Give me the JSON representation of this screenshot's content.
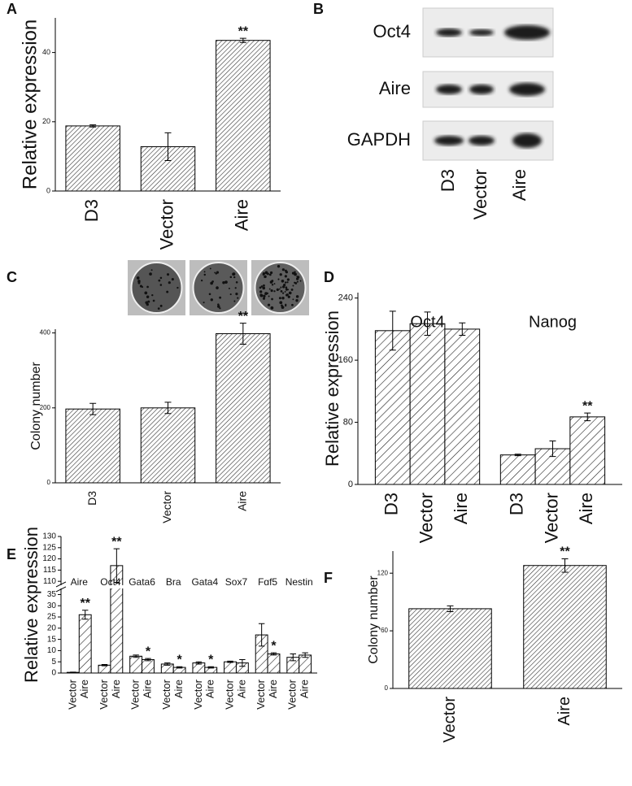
{
  "chart_data": [
    {
      "type": "bar",
      "panel": "A",
      "ylabel": "Relative expression",
      "categories": [
        "D3",
        "Vector",
        "Aire"
      ],
      "values": [
        18.8,
        12.8,
        43.5
      ],
      "errors": [
        0.3,
        4,
        0.6
      ],
      "annotations": [
        null,
        null,
        "**"
      ],
      "ylim": [
        0,
        50
      ],
      "yticks": [
        0,
        20,
        40
      ]
    },
    {
      "type": "blot",
      "panel": "B",
      "rows": [
        "Oct4",
        "Aire",
        "GAPDH"
      ],
      "lanes": [
        "D3",
        "Vector",
        "Aire"
      ]
    },
    {
      "type": "bar",
      "panel": "C",
      "ylabel": "Colony number",
      "categories": [
        "D3",
        "Vector",
        "Aire"
      ],
      "values": [
        197,
        200,
        398
      ],
      "errors": [
        15,
        15,
        28
      ],
      "annotations": [
        null,
        null,
        "**"
      ],
      "ylim": [
        0,
        410
      ],
      "yticks": [
        0,
        200,
        400
      ]
    },
    {
      "type": "bar",
      "panel": "D",
      "ylabel": "Relative expression",
      "groups": [
        {
          "name": "Oct4",
          "categories": [
            "D3",
            "Vector",
            "Aire"
          ],
          "values": [
            198,
            207,
            200
          ],
          "errors": [
            25,
            15,
            8
          ],
          "annotations": [
            null,
            null,
            null
          ]
        },
        {
          "name": "Nanog",
          "categories": [
            "D3",
            "Vector",
            "Aire"
          ],
          "values": [
            38,
            46,
            87
          ],
          "errors": [
            1,
            10,
            5
          ],
          "annotations": [
            null,
            null,
            "**"
          ]
        }
      ],
      "ylim": [
        0,
        247
      ],
      "yticks": [
        0,
        80,
        160,
        240
      ]
    },
    {
      "type": "bar",
      "panel": "E",
      "ylabel": "Relative expression",
      "groups": [
        {
          "name": "Aire",
          "categories": [
            "Vector",
            "Aire"
          ],
          "values": [
            0.3,
            26
          ],
          "errors": [
            0.1,
            2
          ],
          "annotations": [
            null,
            "**"
          ]
        },
        {
          "name": "Oct4",
          "categories": [
            "Vector",
            "Aire"
          ],
          "values": [
            3.5,
            117
          ],
          "errors": [
            0.3,
            7.5
          ],
          "annotations": [
            null,
            "**"
          ]
        },
        {
          "name": "Gata6",
          "categories": [
            "Vector",
            "Aire"
          ],
          "values": [
            7.5,
            6
          ],
          "errors": [
            0.5,
            0.5
          ],
          "annotations": [
            null,
            "*"
          ]
        },
        {
          "name": "Bra",
          "categories": [
            "Vector",
            "Aire"
          ],
          "values": [
            4,
            2.5
          ],
          "errors": [
            0.5,
            0.3
          ],
          "annotations": [
            null,
            "*"
          ]
        },
        {
          "name": "Gata4",
          "categories": [
            "Vector",
            "Aire"
          ],
          "values": [
            4.5,
            2.5
          ],
          "errors": [
            0.5,
            0.3
          ],
          "annotations": [
            null,
            "*"
          ]
        },
        {
          "name": "Sox7",
          "categories": [
            "Vector",
            "Aire"
          ],
          "values": [
            5,
            4.5
          ],
          "errors": [
            0.3,
            1.5
          ],
          "annotations": [
            null,
            null
          ]
        },
        {
          "name": "Fgf5",
          "categories": [
            "Vector",
            "Aire"
          ],
          "values": [
            17,
            8.5
          ],
          "errors": [
            5,
            0.5
          ],
          "annotations": [
            null,
            "*"
          ]
        },
        {
          "name": "Nestin",
          "categories": [
            "Vector",
            "Aire"
          ],
          "values": [
            7,
            8
          ],
          "errors": [
            1.5,
            1
          ],
          "annotations": [
            null,
            null
          ]
        }
      ],
      "ylim": [
        0,
        130
      ],
      "ybreak": [
        37,
        109
      ],
      "yticks": [
        0,
        5,
        10,
        15,
        20,
        25,
        30,
        35,
        110,
        115,
        120,
        125,
        130
      ]
    },
    {
      "type": "bar",
      "panel": "F",
      "ylabel": "Colony number",
      "categories": [
        "Vector",
        "Aire"
      ],
      "values": [
        83,
        128
      ],
      "errors": [
        3,
        7
      ],
      "annotations": [
        null,
        "**"
      ],
      "ylim": [
        0,
        143
      ],
      "yticks": [
        0,
        60,
        120
      ]
    }
  ]
}
